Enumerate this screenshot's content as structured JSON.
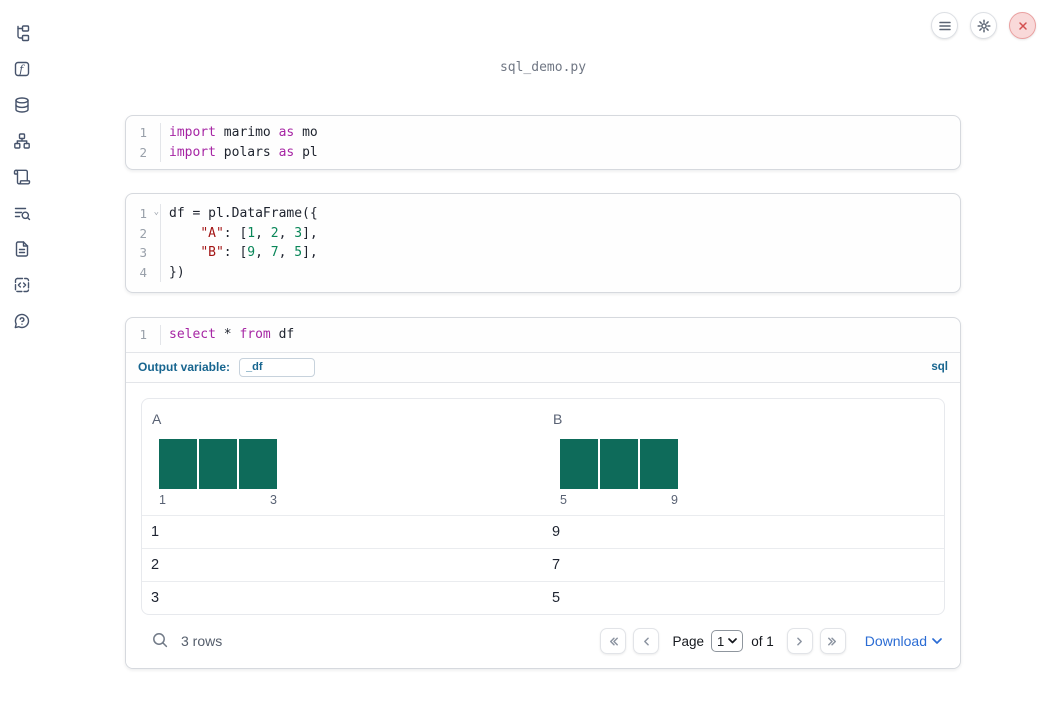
{
  "window": {
    "title": "sql_demo.py"
  },
  "topbar": {
    "buttons": [
      {
        "icon": "menu-icon"
      },
      {
        "icon": "settings-gear-icon"
      },
      {
        "icon": "shutdown-close-icon"
      }
    ]
  },
  "sidebar": {
    "icons": [
      "file-explorer",
      "functions",
      "datasources",
      "dependency-graph",
      "scratchpad",
      "logs",
      "documentation",
      "snippets",
      "help"
    ]
  },
  "cells": [
    {
      "id": "cell-imports",
      "lines": [
        {
          "num": "1",
          "tokens": [
            [
              "kw",
              "import"
            ],
            [
              "pl",
              " marimo "
            ],
            [
              "kw",
              "as"
            ],
            [
              "pl",
              " mo"
            ]
          ]
        },
        {
          "num": "2",
          "tokens": [
            [
              "kw",
              "import"
            ],
            [
              "pl",
              " polars "
            ],
            [
              "kw",
              "as"
            ],
            [
              "pl",
              " pl"
            ]
          ]
        }
      ]
    },
    {
      "id": "cell-dataframe",
      "lines": [
        {
          "num": "1",
          "fold": true,
          "tokens": [
            [
              "pl",
              "df = pl.DataFrame({"
            ]
          ]
        },
        {
          "num": "2",
          "tokens": [
            [
              "pl",
              "    "
            ],
            [
              "str",
              "\"A\""
            ],
            [
              "pl",
              ": ["
            ],
            [
              "num",
              "1"
            ],
            [
              "pl",
              ", "
            ],
            [
              "num",
              "2"
            ],
            [
              "pl",
              ", "
            ],
            [
              "num",
              "3"
            ],
            [
              "pl",
              "],"
            ]
          ]
        },
        {
          "num": "3",
          "tokens": [
            [
              "pl",
              "    "
            ],
            [
              "str",
              "\"B\""
            ],
            [
              "pl",
              ": ["
            ],
            [
              "num",
              "9"
            ],
            [
              "pl",
              ", "
            ],
            [
              "num",
              "7"
            ],
            [
              "pl",
              ", "
            ],
            [
              "num",
              "5"
            ],
            [
              "pl",
              "],"
            ]
          ]
        },
        {
          "num": "4",
          "tokens": [
            [
              "pl",
              "})"
            ]
          ]
        }
      ]
    },
    {
      "id": "cell-sql",
      "lines": [
        {
          "num": "1",
          "tokens": [
            [
              "kw",
              "select"
            ],
            [
              "pl",
              " * "
            ],
            [
              "kw",
              "from"
            ],
            [
              "pl",
              " df"
            ]
          ]
        }
      ]
    }
  ],
  "sql_cell": {
    "output_variable_label": "Output variable:",
    "output_variable_value": "_df",
    "language_badge": "sql"
  },
  "output": {
    "table": {
      "columns": [
        {
          "name": "A",
          "histogram": {
            "bar_count": 3,
            "values": [
              1,
              1,
              1
            ],
            "min_label": "1",
            "max_label": "3"
          }
        },
        {
          "name": "B",
          "histogram": {
            "bar_count": 3,
            "values": [
              1,
              1,
              1
            ],
            "min_label": "5",
            "max_label": "9"
          }
        }
      ],
      "rows": [
        [
          "1",
          "9"
        ],
        [
          "2",
          "7"
        ],
        [
          "3",
          "5"
        ]
      ]
    },
    "footer": {
      "row_count": "3 rows",
      "page_label": "Page",
      "page_value": "1",
      "page_total": "of 1",
      "download_label": "Download"
    }
  },
  "colors": {
    "bar_teal": "#0e6b5a",
    "keyword": "#a626a4",
    "string": "#a31515",
    "number": "#098658",
    "accent_blue": "#17658f",
    "link_blue": "#2b6cd4",
    "close_red": "#d34f4f"
  }
}
